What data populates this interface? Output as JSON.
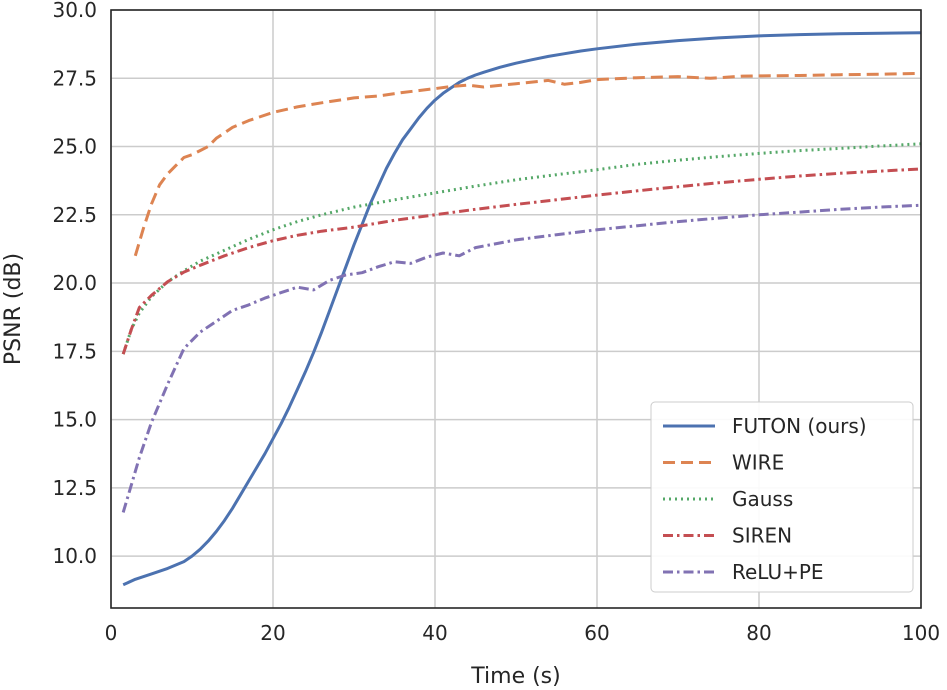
{
  "chart_data": {
    "type": "line",
    "xlabel": "Time (s)",
    "ylabel": "PSNR (dB)",
    "xlim": [
      0,
      100
    ],
    "ylim": [
      8.1,
      30.0
    ],
    "xticks": [
      0,
      20,
      40,
      60,
      80,
      100
    ],
    "yticks": [
      10.0,
      12.5,
      15.0,
      17.5,
      20.0,
      22.5,
      25.0,
      27.5,
      30.0
    ],
    "x_tick_labels": [
      "0",
      "20",
      "40",
      "60",
      "80",
      "100"
    ],
    "y_tick_labels": [
      "10.0",
      "12.5",
      "15.0",
      "17.5",
      "20.0",
      "22.5",
      "25.0",
      "27.5",
      "30.0"
    ],
    "grid": true,
    "legend_position": "bottom-right",
    "series": [
      {
        "name": "FUTON (ours)",
        "color": "#4c72b0",
        "style": "solid",
        "x": [
          1.5,
          3,
          5,
          7,
          9,
          10,
          11,
          12,
          13,
          14,
          15,
          16,
          17,
          18,
          19,
          20,
          21,
          22,
          23,
          24,
          25,
          26,
          27,
          28,
          29,
          30,
          31,
          32,
          33,
          34,
          35,
          36,
          37,
          38,
          39,
          40,
          41,
          42,
          43,
          44,
          45,
          46,
          48,
          50,
          52,
          54,
          56,
          58,
          60,
          65,
          70,
          75,
          80,
          85,
          90,
          95,
          100
        ],
        "y": [
          8.95,
          9.15,
          9.35,
          9.55,
          9.8,
          10.0,
          10.25,
          10.55,
          10.9,
          11.3,
          11.75,
          12.25,
          12.75,
          13.25,
          13.75,
          14.3,
          14.85,
          15.45,
          16.1,
          16.75,
          17.45,
          18.2,
          19.0,
          19.8,
          20.6,
          21.4,
          22.15,
          22.9,
          23.55,
          24.2,
          24.75,
          25.25,
          25.65,
          26.05,
          26.4,
          26.7,
          26.95,
          27.15,
          27.35,
          27.5,
          27.62,
          27.72,
          27.9,
          28.05,
          28.18,
          28.3,
          28.4,
          28.5,
          28.58,
          28.75,
          28.88,
          28.98,
          29.05,
          29.1,
          29.13,
          29.15,
          29.17
        ]
      },
      {
        "name": "WIRE",
        "color": "#dd8452",
        "style": "dashed",
        "x": [
          3,
          4,
          5,
          6,
          7,
          8,
          9,
          10,
          11,
          12,
          13,
          14,
          15,
          17,
          20,
          23,
          26,
          30,
          33,
          36,
          40,
          42,
          44,
          46,
          50,
          54,
          56,
          58,
          60,
          65,
          70,
          74,
          78,
          85,
          90,
          95,
          100
        ],
        "y": [
          21.0,
          22.0,
          22.9,
          23.6,
          24.0,
          24.3,
          24.6,
          24.7,
          24.85,
          25.0,
          25.3,
          25.5,
          25.7,
          25.95,
          26.25,
          26.45,
          26.6,
          26.78,
          26.85,
          26.98,
          27.12,
          27.2,
          27.25,
          27.18,
          27.3,
          27.42,
          27.28,
          27.35,
          27.45,
          27.52,
          27.56,
          27.5,
          27.58,
          27.6,
          27.63,
          27.65,
          27.68
        ]
      },
      {
        "name": "Gauss",
        "color": "#55a868",
        "style": "dotted",
        "x": [
          1.5,
          2.5,
          3.5,
          5,
          7,
          9,
          11,
          14,
          17,
          20,
          23,
          26,
          30,
          35,
          40,
          45,
          50,
          55,
          60,
          65,
          70,
          75,
          80,
          85,
          90,
          95,
          100
        ],
        "y": [
          17.4,
          18.3,
          18.9,
          19.5,
          20.05,
          20.45,
          20.8,
          21.2,
          21.6,
          21.95,
          22.25,
          22.5,
          22.78,
          23.05,
          23.3,
          23.55,
          23.78,
          23.97,
          24.15,
          24.35,
          24.5,
          24.63,
          24.75,
          24.85,
          24.93,
          25.02,
          25.1
        ]
      },
      {
        "name": "SIREN",
        "color": "#c44e52",
        "style": "dashdot",
        "x": [
          1.5,
          2.5,
          3.5,
          5,
          7,
          9,
          11,
          14,
          17,
          20,
          23,
          26,
          30,
          35,
          40,
          45,
          50,
          55,
          60,
          65,
          70,
          75,
          80,
          85,
          90,
          95,
          100
        ],
        "y": [
          17.4,
          18.3,
          19.1,
          19.55,
          20.05,
          20.4,
          20.65,
          21.0,
          21.3,
          21.55,
          21.75,
          21.9,
          22.05,
          22.3,
          22.5,
          22.7,
          22.88,
          23.05,
          23.22,
          23.38,
          23.53,
          23.67,
          23.8,
          23.92,
          24.02,
          24.1,
          24.18
        ]
      },
      {
        "name": "ReLU+PE",
        "color": "#8172b3",
        "style": "dashdot",
        "x": [
          1.5,
          2.5,
          3.5,
          5,
          7,
          9,
          11,
          13,
          15,
          17,
          19,
          21,
          23,
          25,
          27,
          29,
          31,
          33,
          35,
          37,
          39,
          41,
          43,
          45,
          50,
          55,
          60,
          65,
          70,
          75,
          80,
          85,
          90,
          95,
          100
        ],
        "y": [
          11.6,
          12.6,
          13.6,
          14.9,
          16.3,
          17.6,
          18.2,
          18.6,
          19.0,
          19.2,
          19.45,
          19.65,
          19.85,
          19.75,
          20.1,
          20.3,
          20.38,
          20.6,
          20.78,
          20.72,
          20.95,
          21.1,
          21.0,
          21.3,
          21.58,
          21.77,
          21.95,
          22.1,
          22.25,
          22.38,
          22.5,
          22.6,
          22.7,
          22.78,
          22.85
        ]
      }
    ]
  }
}
